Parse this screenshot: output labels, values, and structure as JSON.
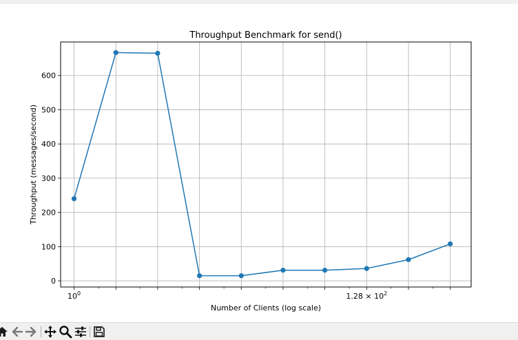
{
  "chart_data": {
    "type": "line",
    "title": "Throughput Benchmark for send()",
    "xlabel": "Number of Clients (log scale)",
    "ylabel": "Throughput (messages/second)",
    "xscale": "log2",
    "x": [
      1,
      2,
      4,
      8,
      16,
      32,
      64,
      128,
      256,
      512
    ],
    "y": [
      240,
      667,
      665,
      15,
      15,
      31,
      31,
      36,
      62,
      108
    ],
    "xlim": [
      0.8,
      724
    ],
    "ylim": [
      -18,
      698
    ],
    "xtick_labels": [
      {
        "x": 1,
        "base": "10",
        "exp": "0",
        "prefix": ""
      },
      {
        "x": 128,
        "base": "10",
        "exp": "2",
        "prefix": "1.28 × "
      }
    ],
    "yticks": [
      0,
      100,
      200,
      300,
      400,
      500,
      600
    ],
    "grid": true,
    "line_color": "#1f77b4"
  },
  "toolbar": {
    "items": [
      {
        "name": "home-icon",
        "glyph": "home"
      },
      {
        "name": "back-icon",
        "glyph": "back"
      },
      {
        "name": "forward-icon",
        "glyph": "forward"
      },
      {
        "name": "pan-icon",
        "glyph": "pan"
      },
      {
        "name": "zoom-icon",
        "glyph": "zoom"
      },
      {
        "name": "configure-subplots-icon",
        "glyph": "sliders"
      },
      {
        "name": "save-icon",
        "glyph": "save"
      }
    ]
  }
}
